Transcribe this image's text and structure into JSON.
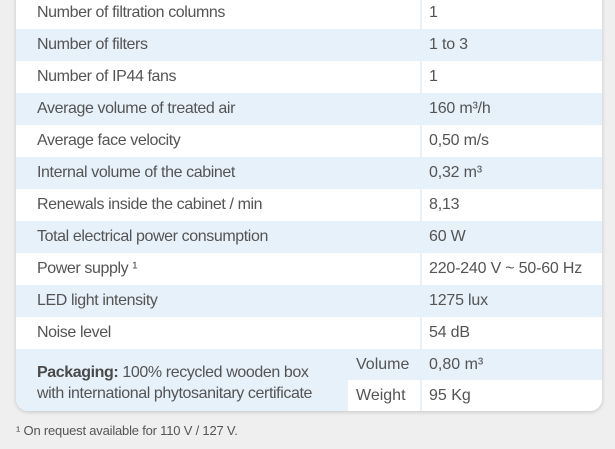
{
  "rows": [
    {
      "label": "Number of filtration columns",
      "value": "1"
    },
    {
      "label": "Number of filters",
      "value": "1 to 3"
    },
    {
      "label": "Number of IP44 fans",
      "value": "1"
    },
    {
      "label": "Average volume of treated air",
      "value": "160 m³/h"
    },
    {
      "label": "Average face velocity",
      "value": "0,50 m/s"
    },
    {
      "label": "Internal volume of the cabinet",
      "value": "0,32 m³"
    },
    {
      "label": "Renewals inside the cabinet / min",
      "value": "8,13"
    },
    {
      "label": "Total electrical power consumption",
      "value": "60 W"
    },
    {
      "label": "Power supply ¹",
      "value": "220-240 V ~ 50-60 Hz"
    },
    {
      "label": "LED light intensity",
      "value": "1275 lux"
    },
    {
      "label": "Noise level",
      "value": "54 dB"
    }
  ],
  "packaging": {
    "title": "Packaging:",
    "text1": " 100% recycled wooden box",
    "text2": "with international phytosanitary certificate",
    "volume_label": "Volume",
    "volume_value": "0,80 m³",
    "weight_label": "Weight",
    "weight_value": "95 Kg"
  },
  "footnote": "¹ On request available for 110 V / 127 V."
}
